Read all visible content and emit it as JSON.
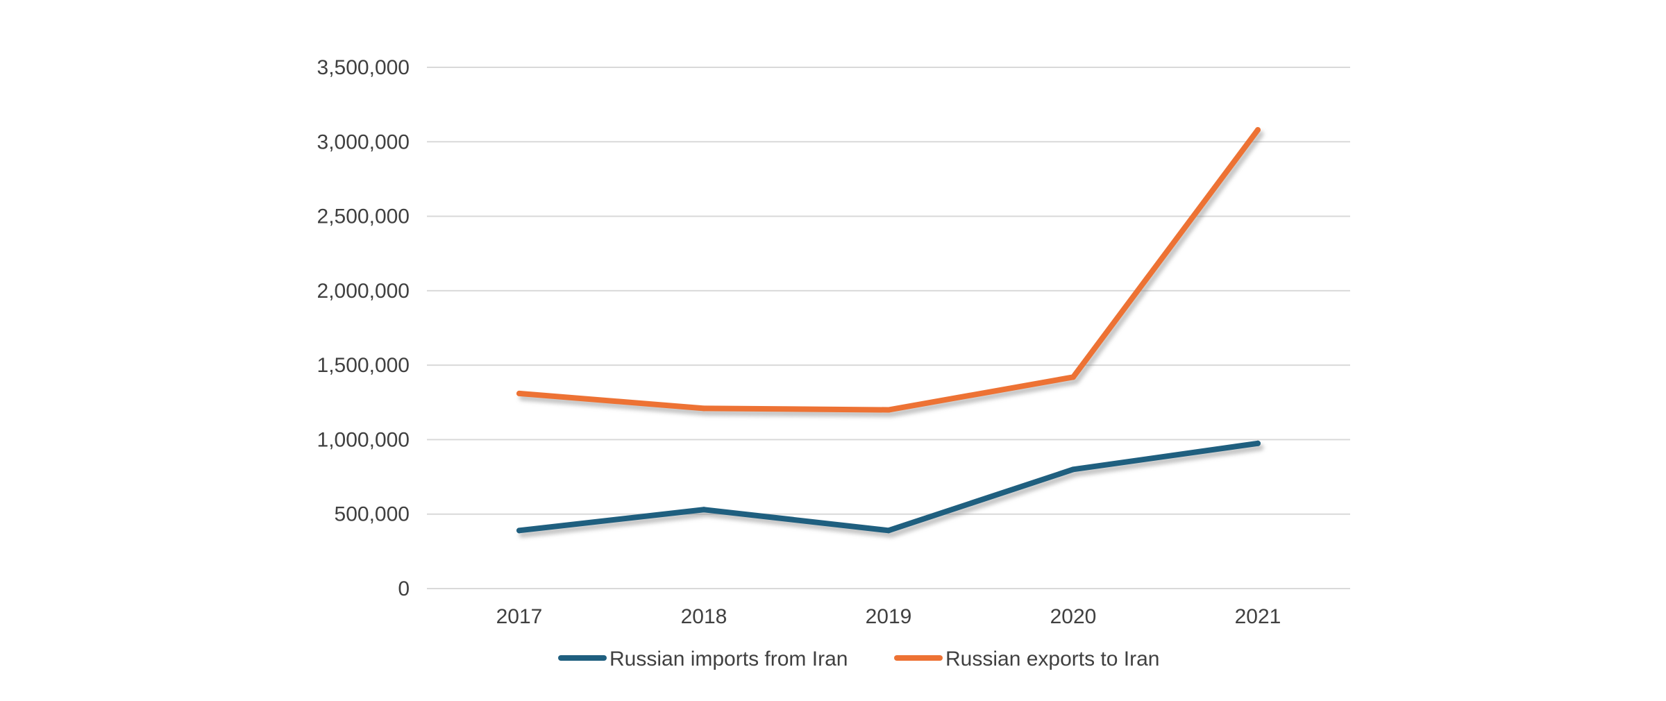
{
  "chart_data": {
    "type": "line",
    "categories": [
      "2017",
      "2018",
      "2019",
      "2020",
      "2021"
    ],
    "y_ticks": [
      "0",
      "500,000",
      "1,000,000",
      "1,500,000",
      "2,000,000",
      "2,500,000",
      "3,000,000",
      "3,500,000"
    ],
    "ylim": [
      0,
      3500000
    ],
    "grid": true,
    "legend_position": "bottom",
    "series": [
      {
        "name": "Russian imports from Iran",
        "color": "#1f5f7f",
        "values": [
          390000,
          530000,
          390000,
          800000,
          975000
        ]
      },
      {
        "name": "Russian exports to Iran",
        "color": "#ed7234",
        "values": [
          1310000,
          1210000,
          1200000,
          1420000,
          3080000
        ]
      }
    ]
  }
}
